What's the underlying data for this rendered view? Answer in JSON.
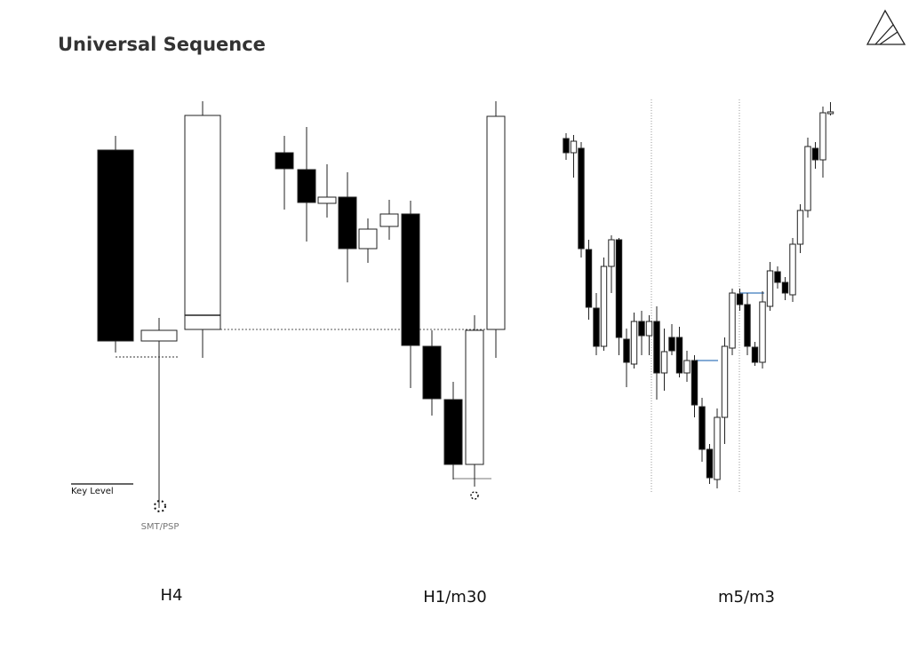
{
  "header": {
    "title": "Universal Sequence"
  },
  "annotations": {
    "key_level": "Key Level",
    "smt_psp": "SMT/PSP"
  },
  "panels": [
    {
      "label": "H4"
    },
    {
      "label": "H1/m30"
    },
    {
      "label": "m5/m3"
    }
  ]
}
